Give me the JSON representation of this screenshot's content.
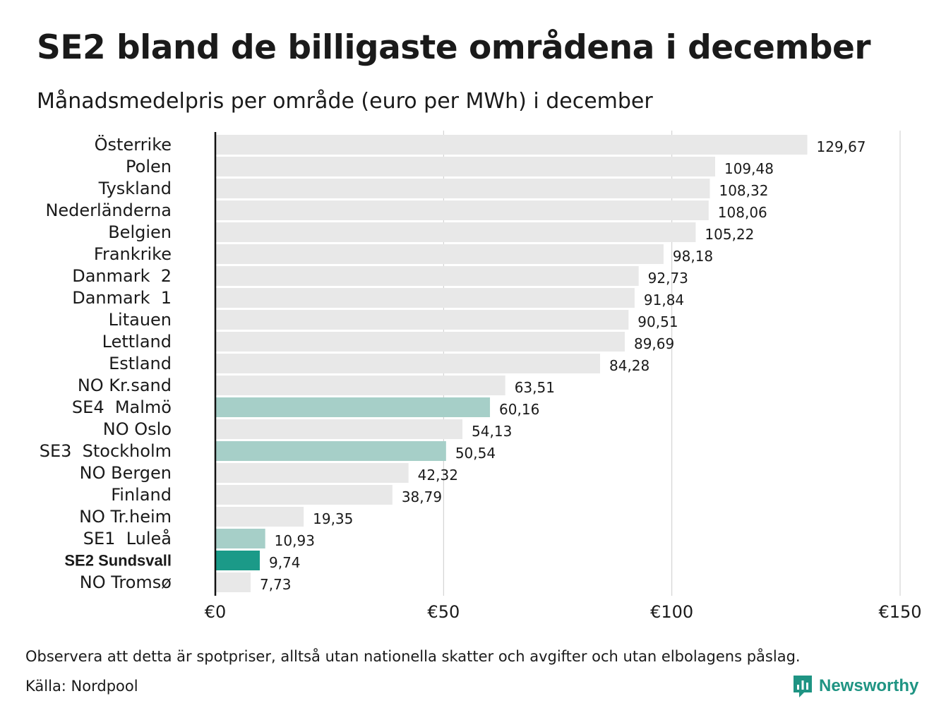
{
  "title": "SE2 bland de billigaste områdena i december",
  "subtitle": "Månadsmedelpris per område (euro per MWh) i december",
  "footnote": "Observera att detta är spotpriser, alltså utan nationella skatter och avgifter och utan elbolagens påslag.",
  "source": "Källa: Nordpool",
  "brand": "Newsworthy",
  "colors": {
    "default_bar": "#e8e8e8",
    "swedish_bar": "#a6cfc8",
    "highlight_bar": "#1b9a88",
    "brand": "#1f9483",
    "grid": "#cccccc",
    "axis": "#111111"
  },
  "chart_data": {
    "type": "bar",
    "orientation": "horizontal",
    "xlim": [
      0,
      150
    ],
    "x_ticks": [
      0,
      50,
      100,
      150
    ],
    "x_tick_labels": [
      "€0",
      "€50",
      "€100",
      "€150"
    ],
    "grid": true,
    "categories": [
      "Österrike",
      "Polen",
      "Tyskland",
      "Nederländerna",
      "Belgien",
      "Frankrike",
      "Danmark  2",
      "Danmark  1",
      "Litauen",
      "Lettland",
      "Estland",
      "NO Kr.sand",
      "SE4  Malmö",
      "NO Oslo",
      "SE3  Stockholm",
      "NO Bergen",
      "Finland",
      "NO Tr.heim",
      "SE1  Luleå",
      "SE2 Sundsvall",
      "NO Tromsø"
    ],
    "values": [
      129.67,
      109.48,
      108.32,
      108.06,
      105.22,
      98.18,
      92.73,
      91.84,
      90.51,
      89.69,
      84.28,
      63.51,
      60.16,
      54.13,
      50.54,
      42.32,
      38.79,
      19.35,
      10.93,
      9.74,
      7.73
    ],
    "value_labels": [
      "129,67",
      "109,48",
      "108,32",
      "108,06",
      "105,22",
      "98,18",
      "92,73",
      "91,84",
      "90,51",
      "89,69",
      "84,28",
      "63,51",
      "60,16",
      "54,13",
      "50,54",
      "42,32",
      "38,79",
      "19,35",
      "10,93",
      "9,74",
      "7,73"
    ],
    "bar_groups": [
      "default",
      "default",
      "default",
      "default",
      "default",
      "default",
      "default",
      "default",
      "default",
      "default",
      "default",
      "default",
      "swedish",
      "default",
      "swedish",
      "default",
      "default",
      "default",
      "swedish",
      "highlight",
      "default"
    ]
  }
}
